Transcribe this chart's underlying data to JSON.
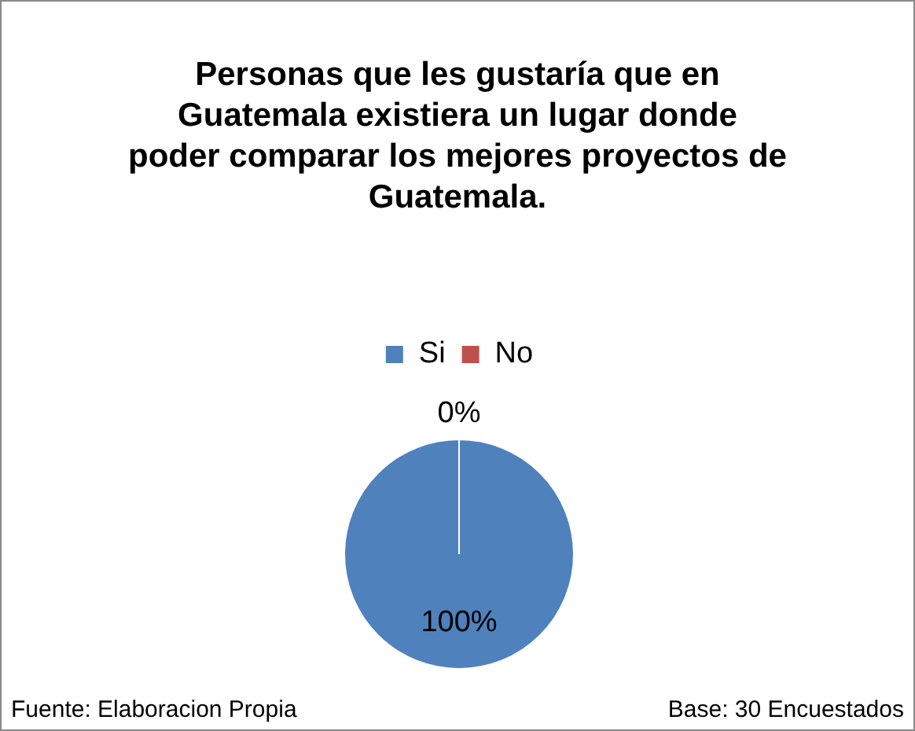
{
  "chart_data": {
    "type": "pie",
    "title": "Personas que les gustaría que en Guatemala existiera un lugar donde poder comparar los mejores proyectos de Guatemala.",
    "categories": [
      "Si",
      "No"
    ],
    "values": [
      100,
      0
    ],
    "colors": [
      "#4f81bd",
      "#c0504d"
    ],
    "value_labels": [
      "100%",
      "0%"
    ],
    "legend": "top",
    "annotations": [
      "Fuente: Elaboracion Propia",
      "Base: 30 Encuestados"
    ]
  }
}
